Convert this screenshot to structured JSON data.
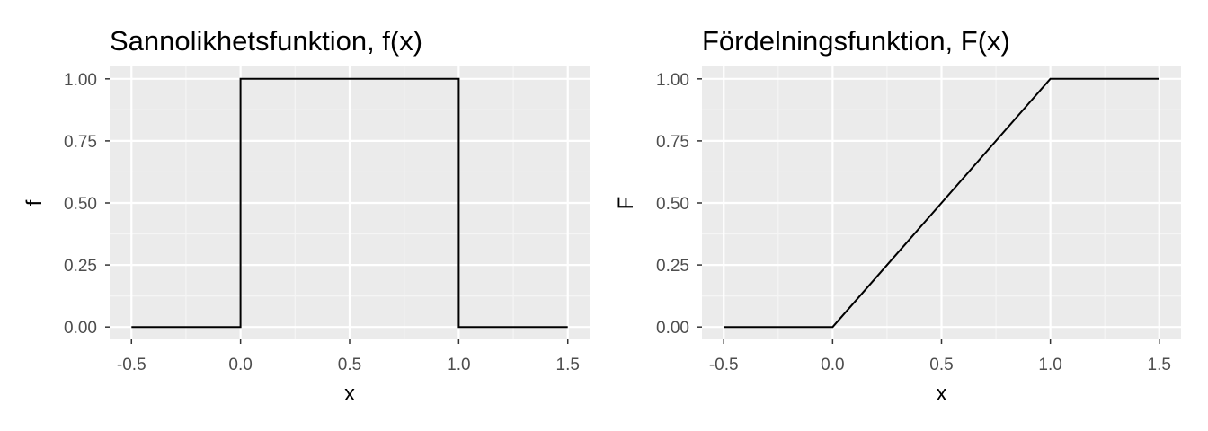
{
  "chart_data": [
    {
      "type": "line",
      "title": "Sannolikhetsfunktion, f(x)",
      "xlabel": "x",
      "ylabel": "f",
      "xlim": [
        -0.6,
        1.6
      ],
      "ylim": [
        -0.05,
        1.05
      ],
      "x_ticks": [
        -0.5,
        0.0,
        0.5,
        1.0,
        1.5
      ],
      "x_tick_labels": [
        "-0.5",
        "0.0",
        "0.5",
        "1.0",
        "1.5"
      ],
      "y_ticks": [
        0.0,
        0.25,
        0.5,
        0.75,
        1.0
      ],
      "y_tick_labels": [
        "0.00",
        "0.25",
        "0.50",
        "0.75",
        "1.00"
      ],
      "grid": true,
      "series": [
        {
          "x": [
            -0.5,
            0.0,
            0.0,
            1.0,
            1.0,
            1.5
          ],
          "y": [
            0.0,
            0.0,
            1.0,
            1.0,
            0.0,
            0.0
          ]
        }
      ]
    },
    {
      "type": "line",
      "title": "Fördelningsfunktion, F(x)",
      "xlabel": "x",
      "ylabel": "F",
      "xlim": [
        -0.6,
        1.6
      ],
      "ylim": [
        -0.05,
        1.05
      ],
      "x_ticks": [
        -0.5,
        0.0,
        0.5,
        1.0,
        1.5
      ],
      "x_tick_labels": [
        "-0.5",
        "0.0",
        "0.5",
        "1.0",
        "1.5"
      ],
      "y_ticks": [
        0.0,
        0.25,
        0.5,
        0.75,
        1.0
      ],
      "y_tick_labels": [
        "0.00",
        "0.25",
        "0.50",
        "0.75",
        "1.00"
      ],
      "grid": true,
      "series": [
        {
          "x": [
            -0.5,
            0.0,
            1.0,
            1.5
          ],
          "y": [
            0.0,
            0.0,
            1.0,
            1.0
          ]
        }
      ]
    }
  ],
  "colors": {
    "panel_background": "#ebebeb",
    "grid_major": "#ffffff",
    "grid_minor": "#f5f5f5",
    "tick_label": "#4d4d4d",
    "line": "#000000"
  }
}
